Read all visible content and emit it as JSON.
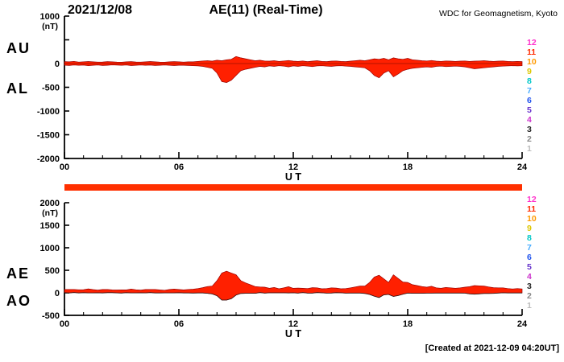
{
  "header": {
    "date": "2021/12/08",
    "title": "AE(11) (Real-Time)",
    "credit": "WDC for Geomagnetism, Kyoto"
  },
  "footer": {
    "created": "[Created at 2021-12-09 04:20UT]"
  },
  "colors": {
    "trace": "#ff2000",
    "trace_edge": "#9a0000",
    "availability_bar": "#ff3000",
    "axis": "#000000"
  },
  "stations": [
    {
      "label": "12",
      "color": "#ff33cc"
    },
    {
      "label": "11",
      "color": "#ff2a00"
    },
    {
      "label": "10",
      "color": "#ff9900"
    },
    {
      "label": "9",
      "color": "#ddc700"
    },
    {
      "label": "8",
      "color": "#00c8c8"
    },
    {
      "label": "7",
      "color": "#44aaff"
    },
    {
      "label": "6",
      "color": "#2255ee"
    },
    {
      "label": "5",
      "color": "#6633cc"
    },
    {
      "label": "4",
      "color": "#cc33cc"
    },
    {
      "label": "3",
      "color": "#222222"
    },
    {
      "label": "2",
      "color": "#888888"
    },
    {
      "label": "1",
      "color": "#bbbbbb"
    }
  ],
  "chart_data": [
    {
      "type": "area",
      "panel": "top",
      "title": "AU / AL auroral electrojet envelopes",
      "xlabel": "U T",
      "ylabel": "(nT)",
      "xlim": [
        0,
        24
      ],
      "ylim": [
        -2000,
        1000
      ],
      "x_step_hours": 0.25,
      "xticks": [
        "00",
        "06",
        "12",
        "18",
        "24"
      ],
      "yticks": [
        {
          "value": 1000,
          "label": "1000"
        },
        {
          "value": 0,
          "label": "0"
        },
        {
          "value": -500,
          "label": "-500"
        },
        {
          "value": -1000,
          "label": "-1000"
        },
        {
          "value": -1500,
          "label": "-1500"
        },
        {
          "value": -2000,
          "label": "-2000"
        }
      ],
      "series": [
        {
          "name": "AU",
          "values": [
            40,
            35,
            45,
            30,
            38,
            42,
            35,
            30,
            33,
            40,
            36,
            30,
            28,
            35,
            40,
            32,
            30,
            36,
            42,
            35,
            30,
            28,
            35,
            40,
            38,
            30,
            35,
            35,
            45,
            55,
            60,
            50,
            70,
            60,
            80,
            90,
            150,
            120,
            100,
            80,
            60,
            70,
            55,
            50,
            60,
            45,
            55,
            65,
            50,
            45,
            55,
            40,
            50,
            60,
            45,
            40,
            50,
            55,
            45,
            40,
            50,
            60,
            70,
            60,
            80,
            100,
            90,
            110,
            80,
            120,
            100,
            90,
            110,
            80,
            70,
            60,
            55,
            65,
            50,
            45,
            55,
            50,
            45,
            50,
            55,
            45,
            50,
            55,
            60,
            50,
            45,
            50,
            55,
            45,
            40,
            45,
            40
          ]
        },
        {
          "name": "AL",
          "values": [
            -35,
            -40,
            -30,
            -38,
            -32,
            -45,
            -36,
            -30,
            -40,
            -35,
            -28,
            -33,
            -38,
            -30,
            -42,
            -35,
            -30,
            -38,
            -33,
            -40,
            -35,
            -30,
            -38,
            -42,
            -35,
            -35,
            -40,
            -45,
            -50,
            -60,
            -80,
            -100,
            -200,
            -380,
            -400,
            -350,
            -250,
            -150,
            -120,
            -100,
            -80,
            -60,
            -70,
            -50,
            -60,
            -45,
            -55,
            -70,
            -50,
            -60,
            -45,
            -55,
            -65,
            -50,
            -45,
            -55,
            -60,
            -50,
            -45,
            -55,
            -60,
            -70,
            -80,
            -90,
            -150,
            -250,
            -300,
            -200,
            -150,
            -280,
            -220,
            -150,
            -120,
            -100,
            -90,
            -80,
            -70,
            -80,
            -60,
            -55,
            -65,
            -60,
            -55,
            -60,
            -70,
            -90,
            -110,
            -100,
            -90,
            -80,
            -70,
            -60,
            -55,
            -50,
            -45,
            -50,
            -45
          ]
        }
      ]
    },
    {
      "type": "area",
      "panel": "bottom",
      "title": "AE / AO auroral electrojet indices",
      "xlabel": "U T",
      "ylabel": "(nT)",
      "xlim": [
        0,
        24
      ],
      "ylim": [
        -500,
        2000
      ],
      "x_step_hours": 0.25,
      "xticks": [
        "00",
        "06",
        "12",
        "18",
        "24"
      ],
      "yticks": [
        {
          "value": 2000,
          "label": "2000"
        },
        {
          "value": 1500,
          "label": "1500"
        },
        {
          "value": 1000,
          "label": "1000"
        },
        {
          "value": 500,
          "label": "500"
        },
        {
          "value": 0,
          "label": "0"
        },
        {
          "value": -500,
          "label": "-500"
        }
      ],
      "series": [
        {
          "name": "AE",
          "values": [
            75,
            75,
            75,
            68,
            70,
            87,
            71,
            60,
            73,
            75,
            64,
            63,
            66,
            65,
            82,
            67,
            60,
            74,
            75,
            75,
            65,
            58,
            73,
            82,
            73,
            65,
            75,
            80,
            95,
            115,
            140,
            150,
            270,
            440,
            480,
            440,
            400,
            270,
            220,
            180,
            140,
            130,
            125,
            100,
            120,
            90,
            110,
            135,
            100,
            105,
            100,
            95,
            115,
            110,
            90,
            95,
            110,
            105,
            90,
            95,
            110,
            130,
            150,
            150,
            230,
            350,
            390,
            310,
            230,
            400,
            320,
            240,
            230,
            180,
            160,
            140,
            125,
            145,
            110,
            100,
            120,
            110,
            100,
            110,
            125,
            135,
            160,
            155,
            150,
            130,
            115,
            110,
            110,
            95,
            85,
            95,
            85
          ]
        },
        {
          "name": "AO",
          "values": [
            3,
            -3,
            8,
            -4,
            3,
            -2,
            -1,
            0,
            -4,
            3,
            4,
            -2,
            -5,
            3,
            -1,
            -2,
            0,
            -1,
            5,
            -3,
            -3,
            -1,
            -2,
            -1,
            2,
            -3,
            -3,
            -5,
            -3,
            -3,
            -10,
            -25,
            -65,
            -160,
            -160,
            -130,
            -50,
            -15,
            -10,
            -10,
            -10,
            5,
            -8,
            0,
            0,
            0,
            0,
            -3,
            0,
            -8,
            5,
            -8,
            -8,
            5,
            0,
            -8,
            -5,
            3,
            0,
            -8,
            -5,
            -5,
            -5,
            -15,
            -35,
            -75,
            -105,
            -45,
            -35,
            -80,
            -60,
            -30,
            -5,
            -10,
            -10,
            -10,
            -8,
            -8,
            -5,
            -5,
            -5,
            -5,
            -5,
            -5,
            -8,
            -23,
            -30,
            -23,
            -15,
            -15,
            -13,
            -5,
            0,
            -3,
            -3,
            -3,
            -3
          ]
        }
      ]
    }
  ]
}
